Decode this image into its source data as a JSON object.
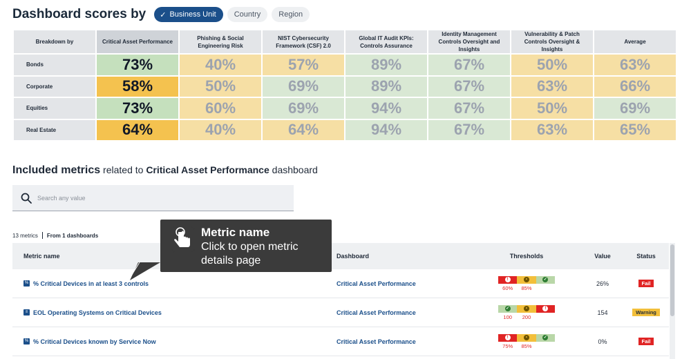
{
  "header": {
    "title": "Dashboard scores by",
    "pills": [
      {
        "label": "Business Unit",
        "active": true
      },
      {
        "label": "Country",
        "active": false
      },
      {
        "label": "Region",
        "active": false
      }
    ]
  },
  "scores": {
    "corner_label": "Breakdown by",
    "columns": [
      "Critical Asset Performance",
      "Phishing & Social Engineering Risk",
      "NIST Cybersecurity Framework (CSF) 2.0",
      "Global IT Audit KPIs: Controls Assurance",
      "Identity Management Controls Oversight and Insights",
      "Vulnerability & Patch Controls Oversight & Insights",
      "Average"
    ],
    "rows": [
      {
        "label": "Bonds",
        "values": [
          "73%",
          "40%",
          "57%",
          "89%",
          "67%",
          "50%",
          "63%"
        ]
      },
      {
        "label": "Corporate",
        "values": [
          "58%",
          "50%",
          "69%",
          "89%",
          "67%",
          "63%",
          "66%"
        ]
      },
      {
        "label": "Equities",
        "values": [
          "73%",
          "60%",
          "69%",
          "94%",
          "67%",
          "50%",
          "69%"
        ]
      },
      {
        "label": "Real Estate",
        "values": [
          "64%",
          "40%",
          "64%",
          "94%",
          "67%",
          "63%",
          "65%"
        ]
      }
    ]
  },
  "included": {
    "title_bold": "Included metrics",
    "title_mid": " related to ",
    "title_dash": "Critical Asset Performance",
    "title_end": " dashboard"
  },
  "search": {
    "placeholder": "Search any value",
    "value": ""
  },
  "counts": {
    "metrics": "13 metrics",
    "from": "From 1 dashboards"
  },
  "metrics_table": {
    "headers": {
      "name": "Metric name",
      "dashboard": "Dashboard",
      "thresholds": "Thresholds",
      "value": "Value",
      "status": "Status"
    },
    "rows": [
      {
        "name": "% Critical Devices in at least 3 controls",
        "icon": "percent-icon",
        "dashboard": "Critical Asset Performance",
        "thresholds": [
          "60%",
          "85%"
        ],
        "value": "26%",
        "status": "Fail"
      },
      {
        "name": "EOL Operating Systems on Critical Devices",
        "icon": "list-icon",
        "dashboard": "Critical Asset Performance",
        "thresholds": [
          "100",
          "200"
        ],
        "value": "154",
        "status": "Warning"
      },
      {
        "name": "% Critical Devices known by Service Now",
        "icon": "percent-icon",
        "dashboard": "Critical Asset Performance",
        "thresholds": [
          "75%",
          "85%"
        ],
        "value": "0%",
        "status": "Fail"
      }
    ]
  },
  "tooltip": {
    "title": "Metric name",
    "body": "Click to open metric details page"
  },
  "colors": {
    "brand": "#1b4f8a",
    "green": "#d9e8d4",
    "yellow": "#f6dfa4",
    "orange": "#f4c24f",
    "fail": "#e02424",
    "warning": "#f2bf3b"
  }
}
